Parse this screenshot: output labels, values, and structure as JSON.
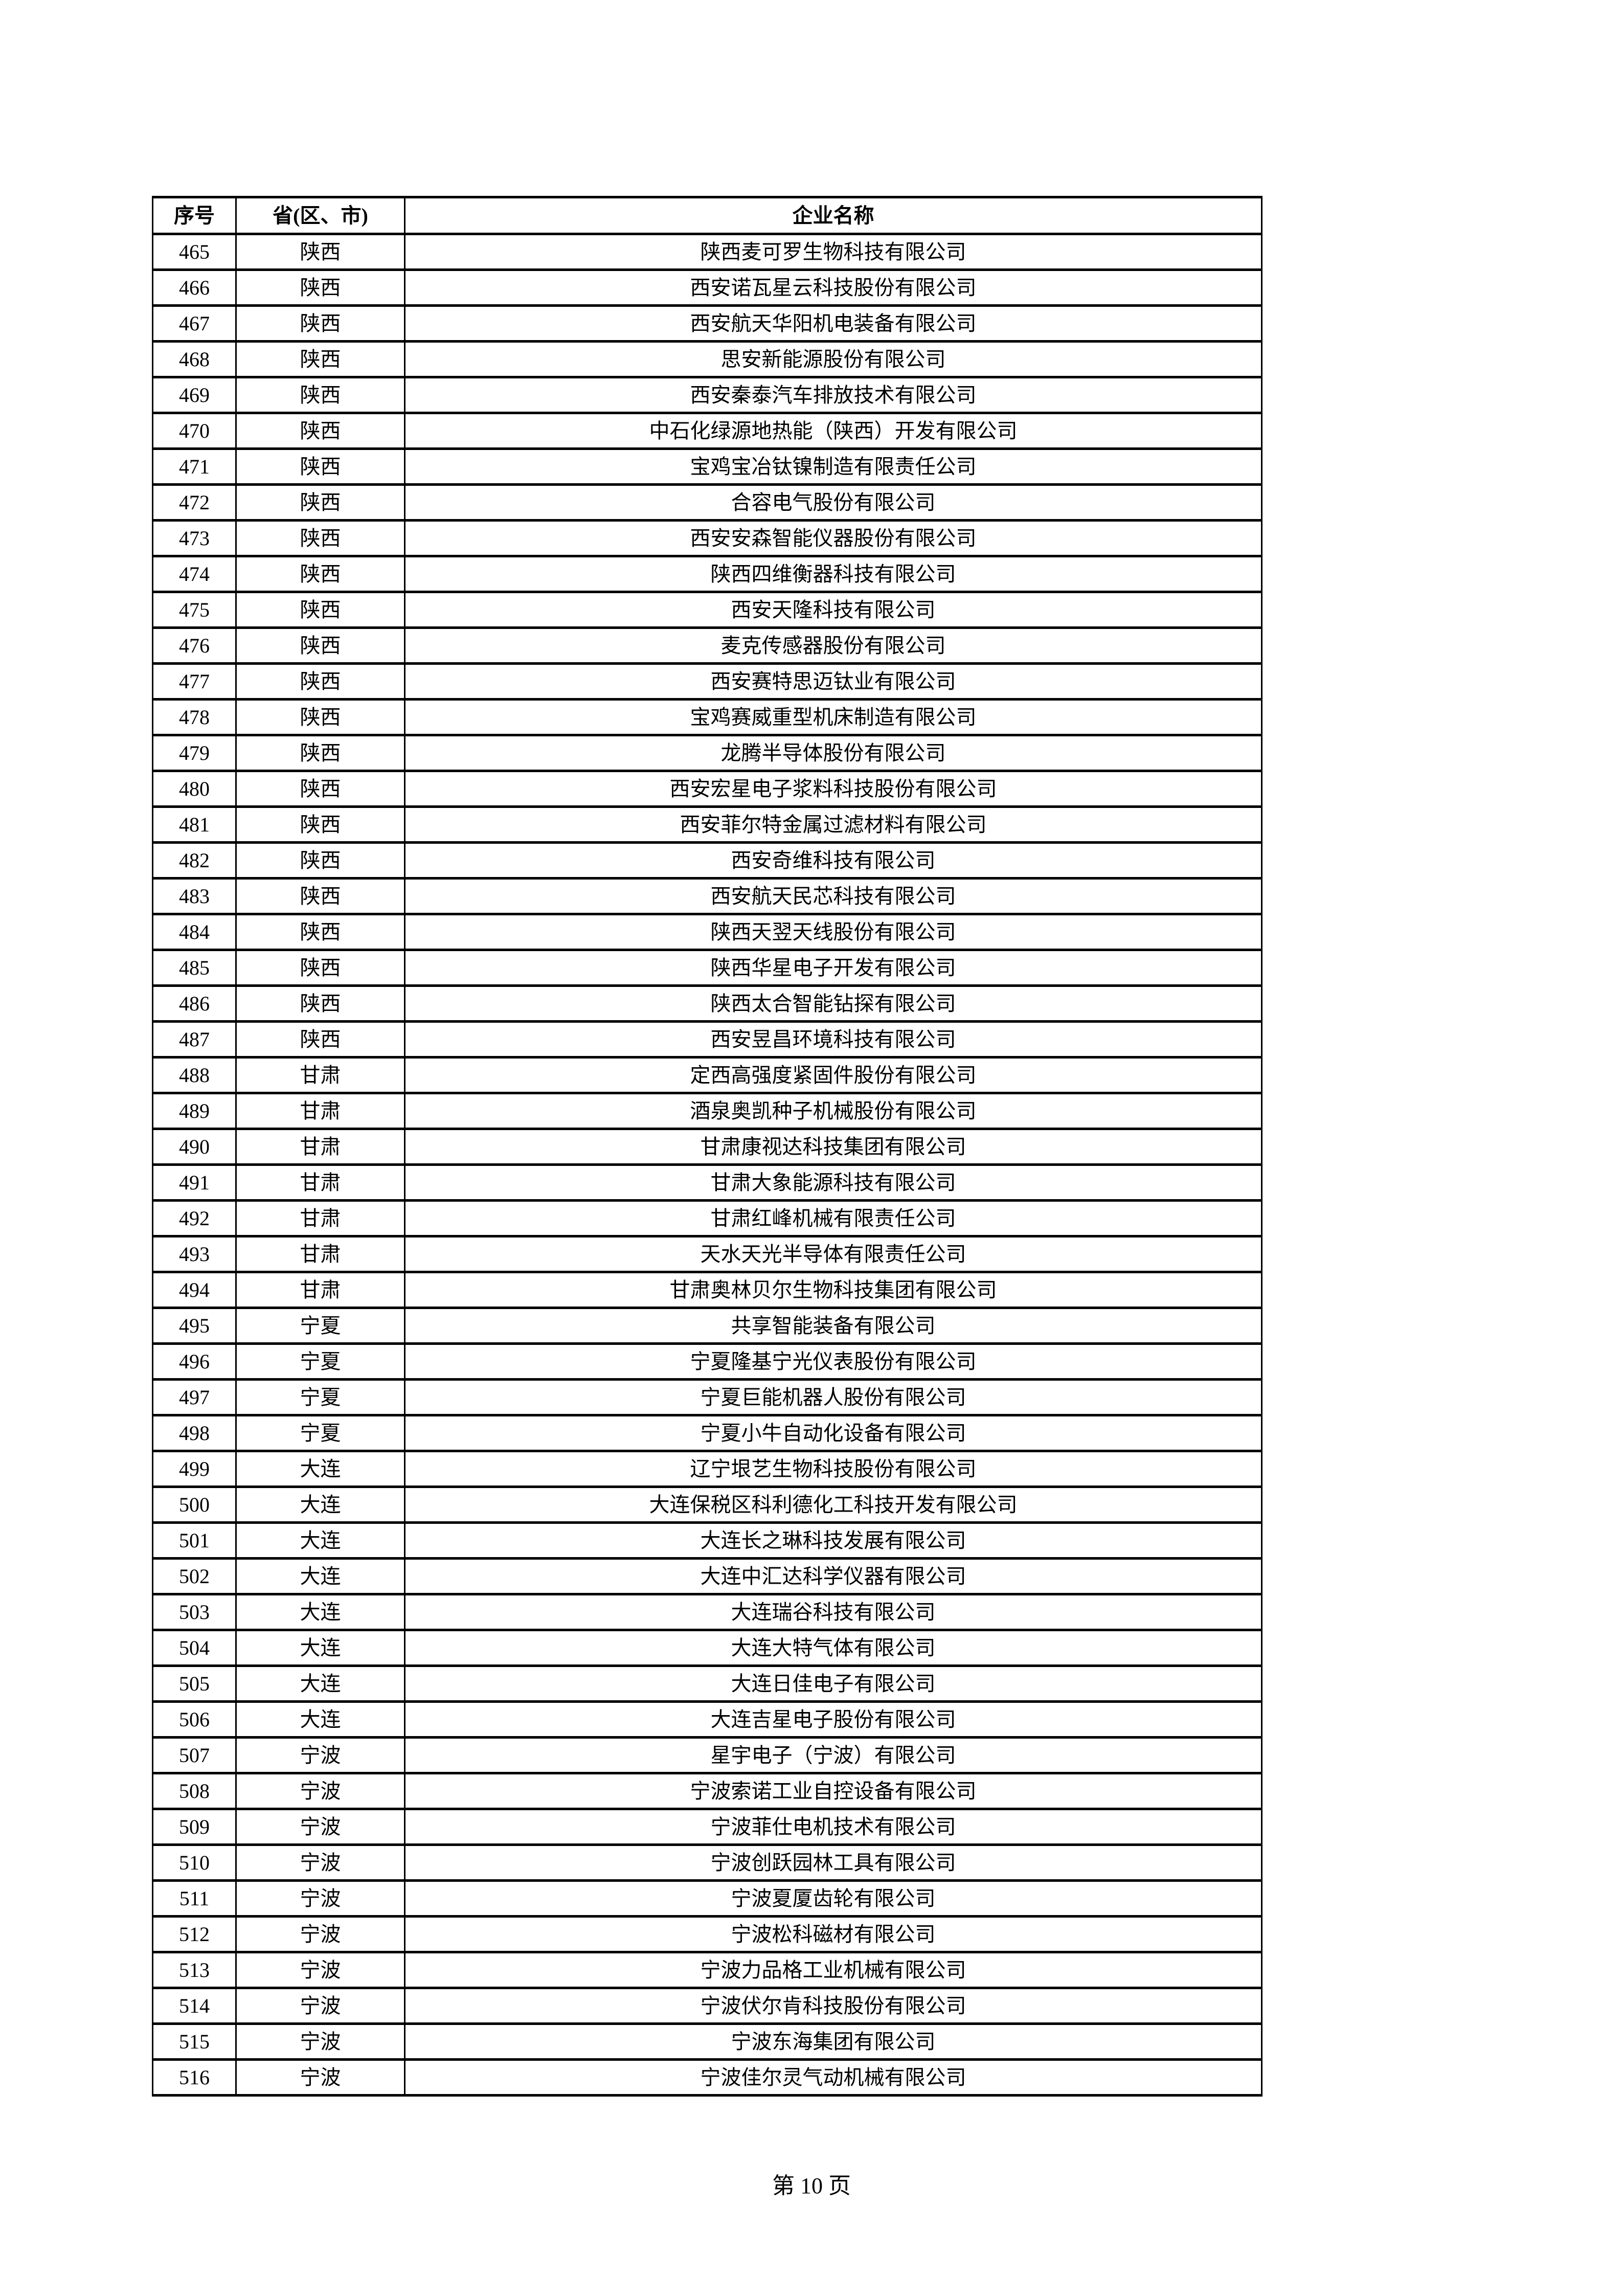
{
  "page": {
    "footer": "第 10 页"
  },
  "colors": {
    "text": "#000000",
    "border": "#000000",
    "background": "#ffffff"
  },
  "table": {
    "headers": [
      "序号",
      "省(区、市)",
      "企业名称"
    ],
    "rows": [
      {
        "no": "465",
        "province": "陕西",
        "company": "陕西麦可罗生物科技有限公司"
      },
      {
        "no": "466",
        "province": "陕西",
        "company": "西安诺瓦星云科技股份有限公司"
      },
      {
        "no": "467",
        "province": "陕西",
        "company": "西安航天华阳机电装备有限公司"
      },
      {
        "no": "468",
        "province": "陕西",
        "company": "思安新能源股份有限公司"
      },
      {
        "no": "469",
        "province": "陕西",
        "company": "西安秦泰汽车排放技术有限公司"
      },
      {
        "no": "470",
        "province": "陕西",
        "company": "中石化绿源地热能（陕西）开发有限公司"
      },
      {
        "no": "471",
        "province": "陕西",
        "company": "宝鸡宝冶钛镍制造有限责任公司"
      },
      {
        "no": "472",
        "province": "陕西",
        "company": "合容电气股份有限公司"
      },
      {
        "no": "473",
        "province": "陕西",
        "company": "西安安森智能仪器股份有限公司"
      },
      {
        "no": "474",
        "province": "陕西",
        "company": "陕西四维衡器科技有限公司"
      },
      {
        "no": "475",
        "province": "陕西",
        "company": "西安天隆科技有限公司"
      },
      {
        "no": "476",
        "province": "陕西",
        "company": "麦克传感器股份有限公司"
      },
      {
        "no": "477",
        "province": "陕西",
        "company": "西安赛特思迈钛业有限公司"
      },
      {
        "no": "478",
        "province": "陕西",
        "company": "宝鸡赛威重型机床制造有限公司"
      },
      {
        "no": "479",
        "province": "陕西",
        "company": "龙腾半导体股份有限公司"
      },
      {
        "no": "480",
        "province": "陕西",
        "company": "西安宏星电子浆料科技股份有限公司"
      },
      {
        "no": "481",
        "province": "陕西",
        "company": "西安菲尔特金属过滤材料有限公司"
      },
      {
        "no": "482",
        "province": "陕西",
        "company": "西安奇维科技有限公司"
      },
      {
        "no": "483",
        "province": "陕西",
        "company": "西安航天民芯科技有限公司"
      },
      {
        "no": "484",
        "province": "陕西",
        "company": "陕西天翌天线股份有限公司"
      },
      {
        "no": "485",
        "province": "陕西",
        "company": "陕西华星电子开发有限公司"
      },
      {
        "no": "486",
        "province": "陕西",
        "company": "陕西太合智能钻探有限公司"
      },
      {
        "no": "487",
        "province": "陕西",
        "company": "西安昱昌环境科技有限公司"
      },
      {
        "no": "488",
        "province": "甘肃",
        "company": "定西高强度紧固件股份有限公司"
      },
      {
        "no": "489",
        "province": "甘肃",
        "company": "酒泉奥凯种子机械股份有限公司"
      },
      {
        "no": "490",
        "province": "甘肃",
        "company": "甘肃康视达科技集团有限公司"
      },
      {
        "no": "491",
        "province": "甘肃",
        "company": "甘肃大象能源科技有限公司"
      },
      {
        "no": "492",
        "province": "甘肃",
        "company": "甘肃红峰机械有限责任公司"
      },
      {
        "no": "493",
        "province": "甘肃",
        "company": "天水天光半导体有限责任公司"
      },
      {
        "no": "494",
        "province": "甘肃",
        "company": "甘肃奥林贝尔生物科技集团有限公司"
      },
      {
        "no": "495",
        "province": "宁夏",
        "company": "共享智能装备有限公司"
      },
      {
        "no": "496",
        "province": "宁夏",
        "company": "宁夏隆基宁光仪表股份有限公司"
      },
      {
        "no": "497",
        "province": "宁夏",
        "company": "宁夏巨能机器人股份有限公司"
      },
      {
        "no": "498",
        "province": "宁夏",
        "company": "宁夏小牛自动化设备有限公司"
      },
      {
        "no": "499",
        "province": "大连",
        "company": "辽宁垠艺生物科技股份有限公司"
      },
      {
        "no": "500",
        "province": "大连",
        "company": "大连保税区科利德化工科技开发有限公司"
      },
      {
        "no": "501",
        "province": "大连",
        "company": "大连长之琳科技发展有限公司"
      },
      {
        "no": "502",
        "province": "大连",
        "company": "大连中汇达科学仪器有限公司"
      },
      {
        "no": "503",
        "province": "大连",
        "company": "大连瑞谷科技有限公司"
      },
      {
        "no": "504",
        "province": "大连",
        "company": "大连大特气体有限公司"
      },
      {
        "no": "505",
        "province": "大连",
        "company": "大连日佳电子有限公司"
      },
      {
        "no": "506",
        "province": "大连",
        "company": "大连吉星电子股份有限公司"
      },
      {
        "no": "507",
        "province": "宁波",
        "company": "星宇电子（宁波）有限公司"
      },
      {
        "no": "508",
        "province": "宁波",
        "company": "宁波索诺工业自控设备有限公司"
      },
      {
        "no": "509",
        "province": "宁波",
        "company": "宁波菲仕电机技术有限公司"
      },
      {
        "no": "510",
        "province": "宁波",
        "company": "宁波创跃园林工具有限公司"
      },
      {
        "no": "511",
        "province": "宁波",
        "company": "宁波夏厦齿轮有限公司"
      },
      {
        "no": "512",
        "province": "宁波",
        "company": "宁波松科磁材有限公司"
      },
      {
        "no": "513",
        "province": "宁波",
        "company": "宁波力品格工业机械有限公司"
      },
      {
        "no": "514",
        "province": "宁波",
        "company": "宁波伏尔肯科技股份有限公司"
      },
      {
        "no": "515",
        "province": "宁波",
        "company": "宁波东海集团有限公司"
      },
      {
        "no": "516",
        "province": "宁波",
        "company": "宁波佳尔灵气动机械有限公司"
      }
    ]
  }
}
